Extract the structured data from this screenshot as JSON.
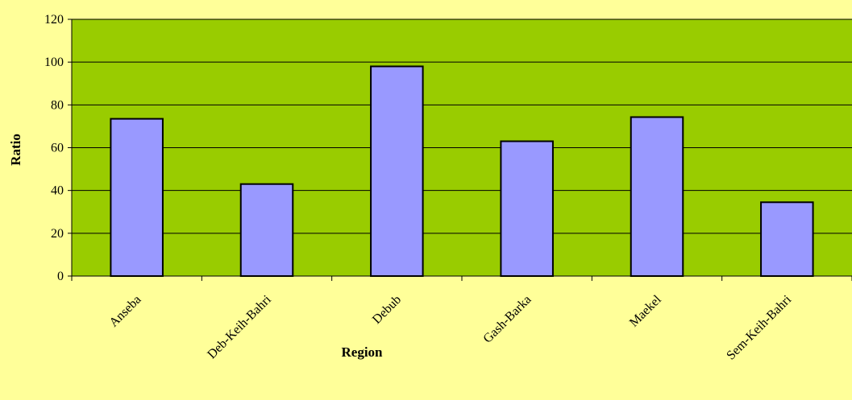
{
  "chart_data": {
    "type": "bar",
    "title": "",
    "xlabel": "Region",
    "ylabel": "Ratio",
    "categories": [
      "Anseba",
      "Deb-Keih-Bahri",
      "Debub",
      "Gash-Barka",
      "Maekel",
      "Sem-Keih-Bahri"
    ],
    "values": [
      73.5,
      43,
      98,
      63,
      74.3,
      34.5
    ],
    "ylim": [
      0,
      120
    ],
    "yticks": [
      0,
      20,
      40,
      60,
      80,
      100,
      120
    ],
    "grid": true,
    "legend": "none",
    "colors": {
      "background": "#FFFF99",
      "plot_area": "#99CC00",
      "bar_fill": "#9999FF",
      "bar_stroke": "#000000",
      "gridline": "#000000"
    }
  }
}
